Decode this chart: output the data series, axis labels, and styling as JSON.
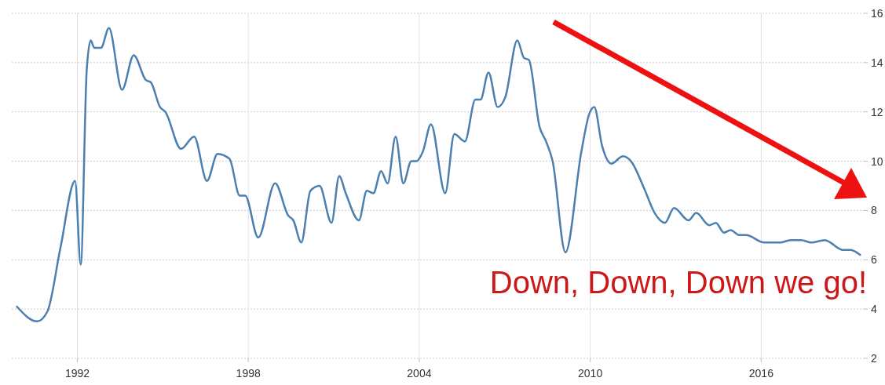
{
  "chart_data": {
    "type": "line",
    "x": [
      1989.88,
      1990.59,
      1990.95,
      1991.41,
      1991.92,
      1992.12,
      1992.33,
      1992.47,
      1992.6,
      1992.83,
      1993.11,
      1993.57,
      1993.98,
      1994.4,
      1994.58,
      1994.9,
      1995.09,
      1995.64,
      1996.1,
      1996.55,
      1996.92,
      1997.34,
      1997.7,
      1997.89,
      1998.35,
      1998.94,
      1999.4,
      1999.58,
      1999.86,
      2000.18,
      2000.5,
      2000.92,
      2001.19,
      2001.42,
      2001.88,
      2002.16,
      2002.39,
      2002.66,
      2002.89,
      2003.17,
      2003.44,
      2003.72,
      2003.9,
      2004.13,
      2004.41,
      2004.91,
      2005.23,
      2005.6,
      2005.97,
      2006.15,
      2006.43,
      2006.75,
      2007.02,
      2007.44,
      2007.67,
      2007.85,
      2008.22,
      2008.45,
      2008.68,
      2009.13,
      2009.69,
      2009.96,
      2010.14,
      2010.42,
      2010.74,
      2011.15,
      2011.43,
      2011.89,
      2012.26,
      2012.62,
      2012.94,
      2013.45,
      2013.72,
      2014.18,
      2014.41,
      2014.69,
      2014.92,
      2015.24,
      2015.47,
      2016.11,
      2016.66,
      2017.03,
      2017.4,
      2017.76,
      2018.23,
      2018.87,
      2019.14,
      2019.47
    ],
    "series": [
      {
        "color": "#4a7fb0",
        "values": [
          4.1,
          3.5,
          3.9,
          6.5,
          9.2,
          5.8,
          13.7,
          14.9,
          14.6,
          14.6,
          15.4,
          12.9,
          14.3,
          13.3,
          13.2,
          12.2,
          12.0,
          10.5,
          11.0,
          9.2,
          10.3,
          10.1,
          8.6,
          8.6,
          6.9,
          9.1,
          7.8,
          7.6,
          6.7,
          8.8,
          9.0,
          7.5,
          9.4,
          8.7,
          7.6,
          8.8,
          8.7,
          9.6,
          9.1,
          11.0,
          9.1,
          10.0,
          10.0,
          10.4,
          11.5,
          8.7,
          11.1,
          10.8,
          12.5,
          12.5,
          13.6,
          12.2,
          12.6,
          14.9,
          14.2,
          14.1,
          11.4,
          10.8,
          10.0,
          6.3,
          10.4,
          11.9,
          12.2,
          10.6,
          9.9,
          10.2,
          10.0,
          8.9,
          7.9,
          7.5,
          8.1,
          7.6,
          7.9,
          7.4,
          7.5,
          7.1,
          7.2,
          7.0,
          7.0,
          6.7,
          6.7,
          6.8,
          6.8,
          6.7,
          6.8,
          6.4,
          6.4,
          6.2
        ]
      }
    ],
    "xlim": [
      1989.7,
      2019.6
    ],
    "ylim": [
      2,
      16
    ],
    "xticks": [
      1992,
      1998,
      2004,
      2010,
      2016
    ],
    "yticks": [
      2,
      4,
      6,
      8,
      10,
      12,
      14,
      16
    ],
    "grid": true,
    "annotations": [
      "Down, Down, Down we go!"
    ]
  }
}
